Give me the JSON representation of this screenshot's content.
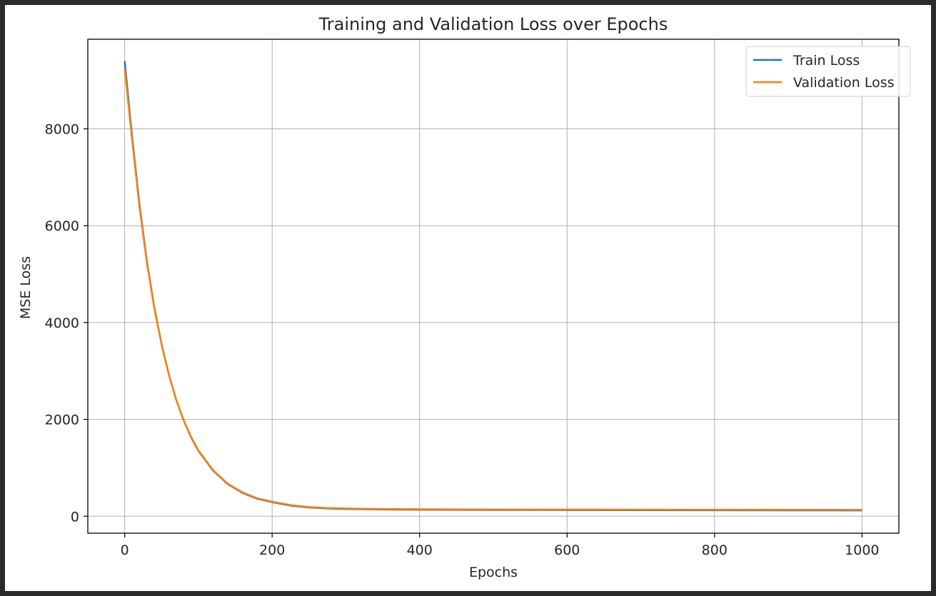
{
  "chart_data": {
    "type": "line",
    "title": "Training and Validation Loss over Epochs",
    "xlabel": "Epochs",
    "ylabel": "MSE Loss",
    "xlim": [
      -50,
      1050
    ],
    "ylim": [
      -350,
      9850
    ],
    "xticks": [
      0,
      200,
      400,
      600,
      800,
      1000
    ],
    "yticks": [
      0,
      2000,
      4000,
      6000,
      8000
    ],
    "grid": true,
    "legend_position": "top-right",
    "x": [
      0,
      10,
      20,
      30,
      40,
      50,
      60,
      70,
      80,
      90,
      100,
      120,
      140,
      160,
      180,
      200,
      225,
      250,
      275,
      300,
      350,
      400,
      500,
      600,
      700,
      800,
      900,
      1000
    ],
    "series": [
      {
        "name": "Train Loss",
        "color": "#1f77b4",
        "values": [
          9400,
          7850,
          6450,
          5280,
          4330,
          3560,
          2920,
          2400,
          1980,
          1630,
          1350,
          940,
          660,
          480,
          360,
          290,
          220,
          180,
          160,
          150,
          140,
          135,
          130,
          128,
          126,
          124,
          122,
          120
        ]
      },
      {
        "name": "Validation Loss",
        "color": "#ff7f0e",
        "values": [
          9250,
          7780,
          6400,
          5250,
          4310,
          3550,
          2920,
          2400,
          1985,
          1640,
          1360,
          950,
          670,
          490,
          370,
          300,
          230,
          190,
          170,
          160,
          150,
          145,
          140,
          138,
          136,
          135,
          134,
          133
        ]
      }
    ]
  }
}
